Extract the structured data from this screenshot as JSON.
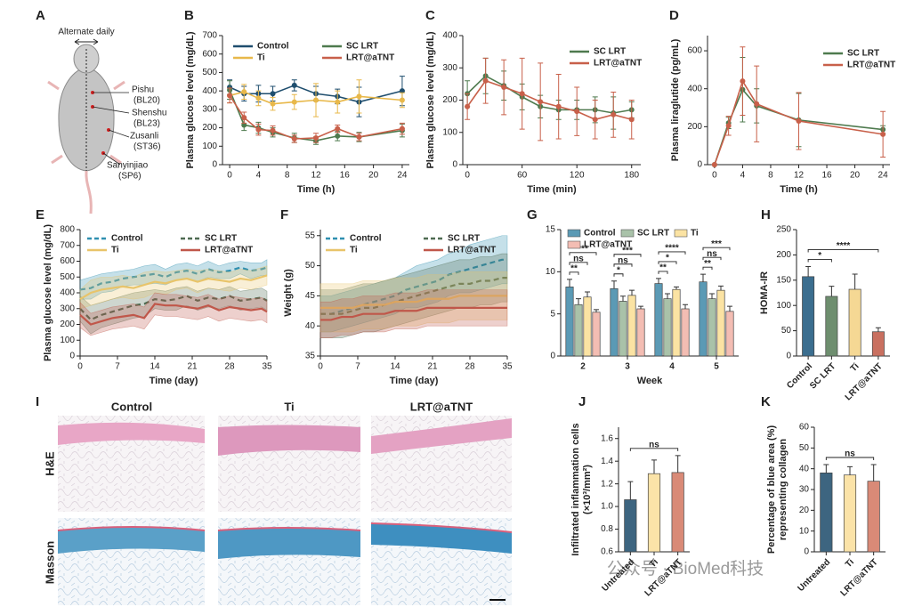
{
  "diagram": {
    "label": "A",
    "caption": "Alternate daily",
    "points": [
      {
        "name": "Pishu",
        "code": "(BL20)"
      },
      {
        "name": "Shenshu",
        "code": "(BL23)"
      },
      {
        "name": "Zusanli",
        "code": "(ST36)"
      },
      {
        "name": "Sanyinjiao",
        "code": "(SP6)"
      }
    ]
  },
  "histology": {
    "label": "I",
    "columns": [
      "Control",
      "Ti",
      "LRT@aTNT"
    ],
    "rows": [
      "H&E",
      "Masson"
    ]
  },
  "watermark": "公众号 · BioMed科技",
  "chart_data": [
    {
      "label": "B",
      "type": "line",
      "ylabel": "Plasma glucose level (mg/dL)",
      "xlabel": "Time (h)",
      "legend": true,
      "x": [
        0,
        2,
        4,
        6,
        9,
        12,
        15,
        18,
        24
      ],
      "xlim": [
        -1,
        25
      ],
      "xticks": [
        0,
        4,
        8,
        12,
        16,
        20,
        24
      ],
      "ylim": [
        0,
        700
      ],
      "yticks": [
        0,
        100,
        200,
        300,
        400,
        500,
        600,
        700
      ],
      "series": [
        {
          "name": "Control",
          "color": "#1f4e6e",
          "values": [
            420,
            385,
            385,
            385,
            430,
            385,
            370,
            340,
            400
          ],
          "errors": [
            40,
            40,
            45,
            40,
            30,
            40,
            40,
            80,
            80
          ]
        },
        {
          "name": "SC LRT",
          "color": "#4e7a4e",
          "values": [
            405,
            215,
            200,
            175,
            145,
            130,
            155,
            150,
            185
          ],
          "errors": [
            50,
            30,
            30,
            25,
            25,
            20,
            25,
            25,
            35
          ]
        },
        {
          "name": "Ti",
          "color": "#e8b84a",
          "values": [
            375,
            395,
            360,
            330,
            340,
            350,
            340,
            370,
            350
          ],
          "errors": [
            40,
            40,
            40,
            35,
            40,
            90,
            60,
            90,
            40
          ]
        },
        {
          "name": "LRT@aTNT",
          "color": "#c8604a",
          "values": [
            375,
            255,
            190,
            185,
            140,
            145,
            195,
            150,
            195
          ],
          "errors": [
            40,
            30,
            30,
            25,
            20,
            25,
            20,
            20,
            30
          ]
        }
      ]
    },
    {
      "label": "C",
      "type": "line",
      "ylabel": "Plasma glucose level (mg/dL)",
      "xlabel": "Time (min)",
      "legend": true,
      "x": [
        0,
        20,
        40,
        60,
        80,
        100,
        120,
        140,
        160,
        180
      ],
      "xlim": [
        -5,
        190
      ],
      "xticks": [
        0,
        60,
        120,
        180
      ],
      "ylim": [
        0,
        400
      ],
      "yticks": [
        0,
        100,
        200,
        300,
        400
      ],
      "series": [
        {
          "name": "SC LRT",
          "color": "#4e7a4e",
          "values": [
            220,
            275,
            245,
            210,
            180,
            170,
            170,
            170,
            160,
            170
          ],
          "errors": [
            40,
            55,
            45,
            40,
            35,
            30,
            30,
            40,
            50,
            25
          ]
        },
        {
          "name": "LRT@aTNT",
          "color": "#c8604a",
          "values": [
            180,
            260,
            240,
            220,
            195,
            180,
            165,
            140,
            155,
            140
          ],
          "errors": [
            40,
            70,
            85,
            110,
            120,
            100,
            75,
            60,
            70,
            60
          ]
        }
      ]
    },
    {
      "label": "D",
      "type": "line",
      "ylabel": "Plasma liraglutide (pg/mL)",
      "xlabel": "Time (h)",
      "legend": true,
      "x": [
        0,
        2,
        4,
        6,
        12,
        24
      ],
      "xlim": [
        -1,
        25
      ],
      "xticks": [
        0,
        4,
        8,
        12,
        16,
        20,
        24
      ],
      "ylim": [
        0,
        680
      ],
      "yticks": [
        0,
        200,
        400,
        600
      ],
      "series": [
        {
          "name": "SC LRT",
          "color": "#4e7a4e",
          "values": [
            0,
            220,
            395,
            310,
            235,
            185
          ],
          "errors": [
            0,
            30,
            170,
            90,
            140,
            20
          ]
        },
        {
          "name": "LRT@aTNT",
          "color": "#c8604a",
          "values": [
            0,
            205,
            440,
            320,
            230,
            160
          ],
          "errors": [
            0,
            50,
            180,
            200,
            150,
            120
          ]
        }
      ]
    },
    {
      "label": "E",
      "type": "line",
      "band": true,
      "ylabel": "Plasma glucose level (mg/dL)",
      "xlabel": "Time (day)",
      "legend": true,
      "x": [
        0,
        2,
        4,
        6,
        8,
        10,
        12,
        14,
        16,
        18,
        20,
        22,
        24,
        26,
        28,
        30,
        32,
        34,
        35
      ],
      "xlim": [
        0,
        35
      ],
      "xticks": [
        0,
        7,
        14,
        21,
        28,
        35
      ],
      "ylim": [
        0,
        800
      ],
      "yticks": [
        0,
        100,
        200,
        300,
        400,
        500,
        600,
        700,
        800
      ],
      "series": [
        {
          "name": "Control",
          "color": "#2f8fb0",
          "dash": true,
          "values": [
            420,
            430,
            460,
            470,
            490,
            500,
            510,
            520,
            500,
            530,
            540,
            520,
            550,
            530,
            540,
            560,
            540,
            550,
            560
          ],
          "errors": [
            60,
            70,
            60,
            60,
            50,
            50,
            60,
            60,
            50,
            50,
            50,
            50,
            50,
            40,
            50,
            40,
            50,
            40,
            50
          ]
        },
        {
          "name": "SC LRT",
          "color": "#4f6b52",
          "dash": true,
          "values": [
            300,
            230,
            260,
            280,
            300,
            320,
            330,
            360,
            350,
            360,
            380,
            350,
            370,
            360,
            380,
            350,
            360,
            370,
            350
          ],
          "errors": [
            80,
            90,
            80,
            80,
            80,
            80,
            80,
            60,
            60,
            70,
            60,
            60,
            60,
            60,
            60,
            60,
            60,
            60,
            60
          ]
        },
        {
          "name": "Ti",
          "color": "#e8c46a",
          "values": [
            360,
            400,
            420,
            430,
            440,
            430,
            450,
            470,
            460,
            480,
            490,
            470,
            490,
            480,
            470,
            490,
            480,
            500,
            510
          ],
          "errors": [
            60,
            80,
            80,
            70,
            70,
            70,
            80,
            70,
            70,
            60,
            60,
            70,
            60,
            60,
            60,
            60,
            60,
            60,
            60
          ]
        },
        {
          "name": "LRT@aTNT",
          "color": "#c0574a",
          "values": [
            260,
            200,
            220,
            240,
            250,
            260,
            240,
            330,
            320,
            320,
            310,
            300,
            320,
            290,
            310,
            300,
            290,
            300,
            280
          ],
          "errors": [
            80,
            70,
            70,
            70,
            70,
            70,
            70,
            70,
            70,
            70,
            70,
            70,
            70,
            70,
            70,
            70,
            70,
            70,
            70
          ]
        }
      ]
    },
    {
      "label": "F",
      "type": "line",
      "band": true,
      "ylabel": "Weight (g)",
      "xlabel": "Time (day)",
      "legend": true,
      "x": [
        0,
        2,
        4,
        6,
        8,
        10,
        12,
        14,
        16,
        18,
        20,
        22,
        24,
        26,
        28,
        30,
        32,
        34,
        35
      ],
      "xlim": [
        0,
        35
      ],
      "xticks": [
        0,
        7,
        14,
        21,
        28,
        35
      ],
      "ylim": [
        35,
        56
      ],
      "yticks": [
        35,
        40,
        45,
        50,
        55
      ],
      "series": [
        {
          "name": "Control",
          "color": "#2f8fb0",
          "dash": true,
          "values": [
            42,
            42,
            42.5,
            43,
            43.5,
            44,
            44.5,
            45,
            46,
            46.5,
            47,
            47.5,
            48.5,
            49,
            49.5,
            50,
            50.5,
            51,
            51
          ],
          "errors": [
            3,
            3,
            3,
            3,
            3,
            3,
            3,
            3,
            3,
            3.5,
            3.5,
            3.5,
            3.5,
            3.5,
            4,
            4,
            4,
            4,
            4
          ]
        },
        {
          "name": "SC LRT",
          "color": "#4f6b52",
          "dash": true,
          "values": [
            42,
            42,
            42,
            42.5,
            43,
            43,
            43.5,
            44,
            44.5,
            45,
            45.5,
            46,
            46.5,
            47,
            47,
            47.5,
            47.5,
            48,
            48
          ],
          "errors": [
            4,
            4,
            4,
            4,
            4,
            4,
            4,
            4,
            4,
            4,
            4,
            4,
            4,
            4,
            4,
            4,
            4,
            4,
            4
          ]
        },
        {
          "name": "Ti",
          "color": "#e8c46a",
          "values": [
            43,
            43,
            43,
            43,
            43.5,
            43.5,
            43.5,
            44,
            44,
            44,
            44.5,
            44.5,
            44.5,
            45,
            45,
            45,
            45,
            45,
            45
          ],
          "errors": [
            4,
            4,
            4,
            4,
            4,
            4,
            4,
            4,
            4,
            4,
            4,
            4,
            4,
            4,
            4,
            4,
            4,
            4,
            4
          ]
        },
        {
          "name": "LRT@aTNT",
          "color": "#c0574a",
          "values": [
            41,
            41,
            41.5,
            41.5,
            42,
            42,
            42,
            42.5,
            42.5,
            42.5,
            43,
            43,
            43,
            43,
            43,
            43,
            43,
            43,
            43
          ],
          "errors": [
            3,
            3,
            3,
            3,
            3,
            3,
            3,
            3,
            3,
            3,
            3,
            3,
            3,
            3,
            3,
            3,
            3,
            3,
            3
          ]
        }
      ]
    },
    {
      "label": "G",
      "type": "bar",
      "xlabel": "Week",
      "legend": true,
      "categories": [
        "2",
        "3",
        "4",
        "5"
      ],
      "ylim": [
        0,
        15
      ],
      "yticks": [
        0,
        5,
        10,
        15
      ],
      "series": [
        {
          "name": "Control",
          "color": "#5b9ab5",
          "values": [
            8.2,
            8.0,
            8.6,
            8.8
          ],
          "errors": [
            0.9,
            0.9,
            0.6,
            0.9
          ]
        },
        {
          "name": "SC LRT",
          "color": "#a9c2a9",
          "values": [
            6.1,
            6.5,
            6.8,
            6.8
          ],
          "errors": [
            0.7,
            0.6,
            0.6,
            0.6
          ]
        },
        {
          "name": "Ti",
          "color": "#fbe3a3",
          "values": [
            7.0,
            7.2,
            7.9,
            7.8
          ],
          "errors": [
            0.6,
            0.6,
            0.3,
            0.5
          ]
        },
        {
          "name": "LRT@aTNT",
          "color": "#f3bdb3",
          "values": [
            5.2,
            5.6,
            5.6,
            5.3
          ],
          "errors": [
            0.3,
            0.3,
            0.5,
            0.6
          ]
        }
      ],
      "significance": [
        {
          "category": "2",
          "groups": [
            "Control",
            "SC LRT"
          ],
          "label": "**"
        },
        {
          "category": "2",
          "groups": [
            "Control",
            "Ti"
          ],
          "label": "ns"
        },
        {
          "category": "2",
          "groups": [
            "Control",
            "LRT@aTNT"
          ],
          "label": "***"
        },
        {
          "category": "3",
          "groups": [
            "Control",
            "SC LRT"
          ],
          "label": "*"
        },
        {
          "category": "3",
          "groups": [
            "Control",
            "Ti"
          ],
          "label": "ns"
        },
        {
          "category": "3",
          "groups": [
            "Control",
            "LRT@aTNT"
          ],
          "label": "***"
        },
        {
          "category": "4",
          "groups": [
            "Control",
            "SC LRT"
          ],
          "label": "**"
        },
        {
          "category": "4",
          "groups": [
            "Control",
            "Ti"
          ],
          "label": "*"
        },
        {
          "category": "4",
          "groups": [
            "Control",
            "LRT@aTNT"
          ],
          "label": "****"
        },
        {
          "category": "5",
          "groups": [
            "Control",
            "SC LRT"
          ],
          "label": "**"
        },
        {
          "category": "5",
          "groups": [
            "Control",
            "Ti"
          ],
          "label": "ns"
        },
        {
          "category": "5",
          "groups": [
            "Control",
            "LRT@aTNT"
          ],
          "label": "***"
        }
      ]
    },
    {
      "label": "H",
      "type": "bar",
      "ylabel": "HOMA-IR",
      "categories": [
        "Control",
        "SC LRT",
        "Ti",
        "LRT@aTNT"
      ],
      "values": [
        157,
        118,
        132,
        48
      ],
      "errors": [
        20,
        20,
        30,
        8
      ],
      "colors": [
        "#3b6e8f",
        "#6e8e6f",
        "#f5d894",
        "#c97060"
      ],
      "ylim": [
        0,
        250
      ],
      "yticks": [
        0,
        50,
        100,
        150,
        200,
        250
      ],
      "significance": [
        {
          "groups": [
            "Control",
            "SC LRT"
          ],
          "label": "*"
        },
        {
          "groups": [
            "Control",
            "LRT@aTNT"
          ],
          "label": "****"
        }
      ]
    },
    {
      "label": "J",
      "type": "bar",
      "ylabel": [
        "Infiltrated inflammation cells",
        "(×10³/mm²)"
      ],
      "categories": [
        "Untreated",
        "Ti",
        "LRT@aTNT"
      ],
      "values": [
        1.06,
        1.29,
        1.3
      ],
      "errors": [
        0.16,
        0.12,
        0.15
      ],
      "colors": [
        "#3d6580",
        "#fbe3a8",
        "#d98a77"
      ],
      "ylim": [
        0.6,
        1.7
      ],
      "yticks": [
        0.6,
        0.8,
        {
          "value": 1,
          "label": "1.0"
        },
        1.2,
        1.4,
        1.6
      ],
      "significance": [
        {
          "groups": [
            "Untreated",
            "LRT@aTNT"
          ],
          "label": "ns"
        }
      ]
    },
    {
      "label": "K",
      "type": "bar",
      "ylabel": [
        "Percentage of blue area (%)",
        "representing collagen"
      ],
      "categories": [
        "Untreated",
        "Ti",
        "LRT@aTNT"
      ],
      "values": [
        38,
        37,
        34
      ],
      "errors": [
        4,
        4,
        8
      ],
      "colors": [
        "#3d6580",
        "#fbe3a8",
        "#d98a77"
      ],
      "ylim": [
        0,
        60
      ],
      "yticks": [
        0,
        10,
        20,
        30,
        40,
        50,
        60
      ],
      "significance": [
        {
          "groups": [
            "Untreated",
            "LRT@aTNT"
          ],
          "label": "ns"
        }
      ]
    }
  ]
}
